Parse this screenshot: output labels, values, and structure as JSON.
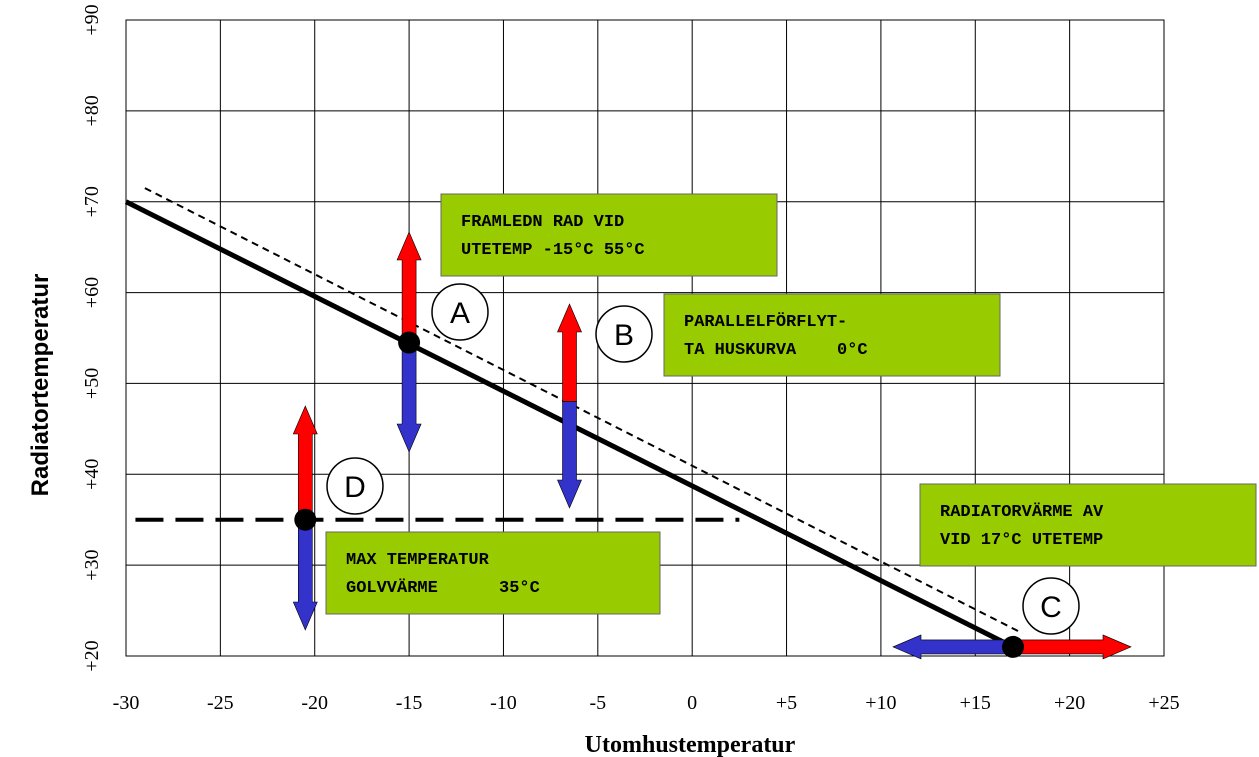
{
  "chart_data": {
    "type": "line",
    "xlabel": "Utomhustemperatur",
    "ylabel": "Radiatortemperatur",
    "xlim": [
      -30,
      25
    ],
    "ylim": [
      20,
      90
    ],
    "x_ticks": [
      -30,
      -25,
      -20,
      -15,
      -10,
      -5,
      0,
      5,
      10,
      15,
      20,
      25
    ],
    "x_tick_labels": [
      "-30",
      "-25",
      "-20",
      "-15",
      "-10",
      "-5",
      "0",
      "+5",
      "+10",
      "+15",
      "+20",
      "+25"
    ],
    "y_ticks": [
      20,
      30,
      40,
      50,
      60,
      70,
      80,
      90
    ],
    "y_tick_labels": [
      "+20",
      "+30",
      "+40",
      "+50",
      "+60",
      "+70",
      "+80",
      "+90"
    ],
    "grid": true,
    "series": [
      {
        "style": "solid-thick",
        "color": "#000000",
        "x": [
          -30,
          17
        ],
        "y": [
          70,
          21
        ]
      },
      {
        "style": "dashed",
        "color": "#000000",
        "x": [
          -29,
          17.5
        ],
        "y": [
          71.5,
          22.5
        ]
      },
      {
        "style": "long-dashed",
        "color": "#000000",
        "x": [
          -29.5,
          2.5
        ],
        "y": [
          35,
          35
        ]
      }
    ],
    "points": [
      {
        "circle_label": "A",
        "x": -15,
        "y": 54.5
      },
      {
        "circle_label": "D",
        "x": -20.5,
        "y": 35
      },
      {
        "circle_label": "C",
        "x": 17,
        "y": 21
      }
    ],
    "markers": [
      {
        "circle_label": "B",
        "x": -6.5,
        "y": 48
      }
    ],
    "annotations": [
      {
        "lines": [
          "FRAMLEDN RAD VID",
          "UTETEMP -15°C 55°C"
        ]
      },
      {
        "lines": [
          "PARALLELFÖRFLYT-",
          "TA HUSKURVA    0°C"
        ]
      },
      {
        "lines": [
          "RADIATORVÄRME AV",
          "VID 17°C UTETEMP"
        ]
      },
      {
        "lines": [
          "MAX TEMPERATUR",
          "GOLVVÄRME      35°C"
        ]
      }
    ],
    "colors": {
      "increase_arrow": "#ff0000",
      "decrease_arrow": "#3333cc",
      "box_fill": "#99cc00",
      "grid": "#000000"
    }
  }
}
